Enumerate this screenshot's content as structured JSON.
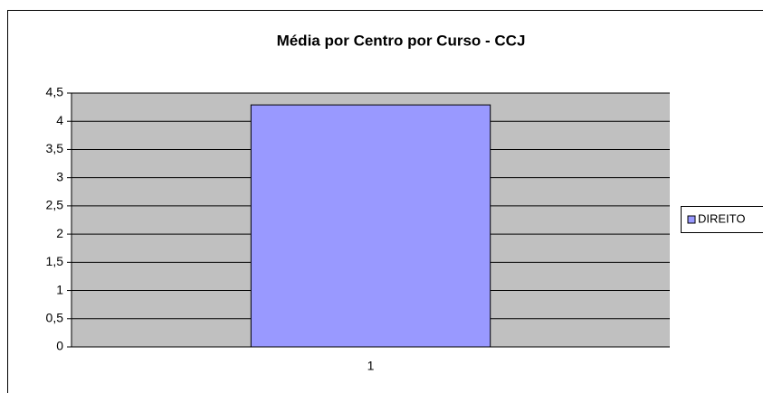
{
  "chart_data": {
    "type": "bar",
    "title": "Média por Centro por Curso - CCJ",
    "categories": [
      "1"
    ],
    "series": [
      {
        "name": "DIREITO",
        "color": "#9999ff",
        "values": [
          4.29
        ]
      }
    ],
    "ylim": [
      0,
      4.5
    ],
    "yticks": [
      0,
      {
        "value": 0.5,
        "label": "0,5"
      },
      1,
      {
        "value": 1.5,
        "label": "1,5"
      },
      2,
      {
        "value": 2.5,
        "label": "2,5"
      },
      3,
      {
        "value": 3.5,
        "label": "3,5"
      },
      4,
      {
        "value": 4.5,
        "label": "4,5"
      }
    ],
    "grid": true,
    "legend": "right"
  }
}
